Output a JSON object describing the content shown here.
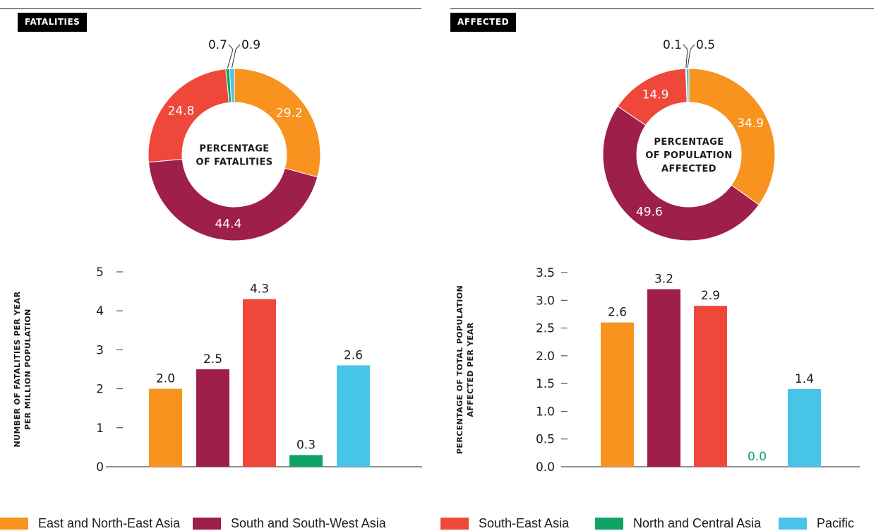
{
  "colors": {
    "east_ne_asia": "#f7931e",
    "south_sw_asia": "#9e1f4b",
    "south_east_asia": "#ef473a",
    "north_central_asia": "#0ea463",
    "pacific": "#47c4e8"
  },
  "panels": {
    "left_title": "FATALITIES",
    "right_title": "AFFECTED"
  },
  "legend": [
    {
      "label": "East and North-East Asia",
      "color_key": "east_ne_asia"
    },
    {
      "label": "South and South-West Asia",
      "color_key": "south_sw_asia"
    },
    {
      "label": "South-East Asia",
      "color_key": "south_east_asia"
    },
    {
      "label": "North and Central Asia",
      "color_key": "north_central_asia"
    },
    {
      "label": "Pacific",
      "color_key": "pacific"
    }
  ],
  "chart_data": [
    {
      "type": "pie",
      "variant": "donut",
      "center_label": [
        "PERCENTAGE",
        "OF FATALITIES"
      ],
      "categories": [
        "East and North-East Asia",
        "South and South-West Asia",
        "South-East Asia",
        "North and Central Asia",
        "Pacific"
      ],
      "values": [
        29.2,
        44.4,
        24.8,
        0.7,
        0.9
      ],
      "labels": [
        "29.2",
        "44.4",
        "24.8",
        "0.7",
        "0.9"
      ]
    },
    {
      "type": "pie",
      "variant": "donut",
      "center_label": [
        "PERCENTAGE",
        "OF POPULATION",
        "AFFECTED"
      ],
      "categories": [
        "East and North-East Asia",
        "South and South-West Asia",
        "South-East Asia",
        "North and Central Asia",
        "Pacific"
      ],
      "values": [
        34.9,
        49.6,
        14.9,
        0.1,
        0.5
      ],
      "labels": [
        "34.9",
        "49.6",
        "14.9",
        "0.1",
        "0.5"
      ]
    },
    {
      "type": "bar",
      "categories": [
        "East and North-East Asia",
        "South and South-West Asia",
        "South-East Asia",
        "North and Central Asia",
        "Pacific"
      ],
      "values": [
        2.0,
        2.5,
        4.3,
        0.3,
        2.6
      ],
      "value_labels": [
        "2.0",
        "2.5",
        "4.3",
        "0.3",
        "2.6"
      ],
      "ylabel": [
        "NUMBER OF FATALITIES PER YEAR",
        "PER MILLION POPULATION"
      ],
      "ylim": [
        0,
        5
      ],
      "yticks": [
        0,
        1,
        2,
        3,
        4,
        5
      ],
      "ytick_labels": [
        "0",
        "1",
        "2",
        "3",
        "4",
        "5"
      ]
    },
    {
      "type": "bar",
      "categories": [
        "East and North-East Asia",
        "South and South-West Asia",
        "South-East Asia",
        "North and Central Asia",
        "Pacific"
      ],
      "values": [
        2.6,
        3.2,
        2.9,
        0.0,
        1.4
      ],
      "value_labels": [
        "2.6",
        "3.2",
        "2.9",
        "0.0",
        "1.4"
      ],
      "ylabel": [
        "PERCENTAGE OF TOTAL POPULATION",
        "AFFECTED PER YEAR"
      ],
      "ylim": [
        0,
        3.5
      ],
      "yticks": [
        0.0,
        0.5,
        1.0,
        1.5,
        2.0,
        2.5,
        3.0,
        3.5
      ],
      "ytick_labels": [
        "0.0",
        "0.5",
        "1.0",
        "1.5",
        "2.0",
        "2.5",
        "3.0",
        "3.5"
      ]
    }
  ]
}
